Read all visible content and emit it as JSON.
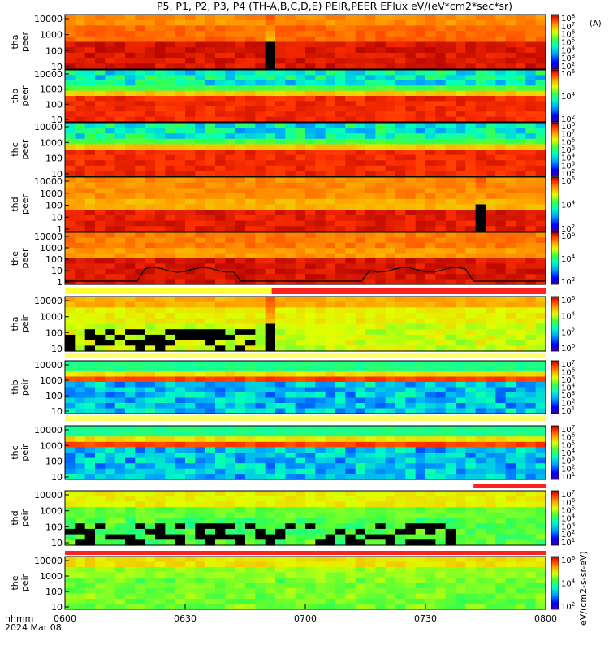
{
  "chart_data": {
    "type": "heatmap",
    "title": "P5, P1, P2, P3, P4 (TH-A,B,C,D,E) PEIR,PEER EFlux eV/(eV*cm2*sec*sr)",
    "colorbar_units": "eV/(cm2-s-sr-eV)",
    "x_tick_labels": [
      "0600",
      "0630",
      "0700",
      "0730",
      "0800"
    ],
    "x_label_line1": "hhmm",
    "x_label_line2": "2024 Mar 08",
    "yscale": "log",
    "panels": [
      {
        "probe": "tha",
        "species": "peer",
        "y_ticks": [
          "10000",
          "1000",
          "100",
          "10"
        ],
        "cb_ticks": [
          "10^8",
          "10^7",
          "10^6",
          "10^5",
          "10^4",
          "10^3",
          "10^2"
        ],
        "cb_unit": "(A)",
        "gap": [
          0.412,
          0.428
        ]
      },
      {
        "probe": "thb",
        "species": "peer",
        "y_ticks": [
          "10000",
          "1000",
          "100",
          "10"
        ],
        "cb_ticks": [
          "10^6",
          "10^4",
          "10^2"
        ]
      },
      {
        "probe": "thc",
        "species": "peer",
        "y_ticks": [
          "10000",
          "1000",
          "100",
          "10"
        ],
        "cb_ticks": [
          "10^8",
          "10^7",
          "10^6",
          "10^5",
          "10^4",
          "10^3",
          "10^2"
        ]
      },
      {
        "probe": "thd",
        "species": "peer",
        "y_ticks": [
          "10000",
          "1000",
          "100",
          "10",
          "1"
        ],
        "cb_ticks": [
          "10^6",
          "10^4",
          "10^2"
        ],
        "gap": [
          0.845,
          0.872
        ]
      },
      {
        "probe": "the",
        "species": "peer",
        "y_ticks": [
          "10000",
          "1000",
          "100",
          "10",
          "1"
        ],
        "cb_ticks": [
          "10^6",
          "10^4",
          "10^2"
        ],
        "potential_line": true
      },
      {
        "probe": "tha",
        "species": "peir",
        "y_ticks": [
          "10000",
          "1000",
          "100",
          "10"
        ],
        "cb_ticks": [
          "10^6",
          "10^4",
          "10^2",
          "10^0"
        ],
        "gap": [
          0.412,
          0.428
        ]
      },
      {
        "probe": "thb",
        "species": "peir",
        "y_ticks": [
          "10000",
          "1000",
          "100",
          "10"
        ],
        "cb_ticks": [
          "10^7",
          "10^6",
          "10^5",
          "10^4",
          "10^3",
          "10^2",
          "10^1"
        ]
      },
      {
        "probe": "thc",
        "species": "peir",
        "y_ticks": [
          "10000",
          "1000",
          "100",
          "10"
        ],
        "cb_ticks": [
          "10^7",
          "10^6",
          "10^5",
          "10^4",
          "10^3",
          "10^2",
          "10^1"
        ]
      },
      {
        "probe": "thd",
        "species": "peir",
        "y_ticks": [
          "10000",
          "1000",
          "100",
          "10"
        ],
        "cb_ticks": [
          "10^7",
          "10^6",
          "10^5",
          "10^4",
          "10^3",
          "10^2",
          "10^1"
        ]
      },
      {
        "probe": "the",
        "species": "peir",
        "y_ticks": [
          "10000",
          "1000",
          "100",
          "10"
        ],
        "cb_ticks": [
          "10^6",
          "10^4",
          "10^2"
        ]
      }
    ],
    "mode_bars": [
      {
        "segments": [
          {
            "color": "#ffff33",
            "from": 0.0,
            "to": 0.43
          },
          {
            "color": "#ff2020",
            "from": 0.43,
            "to": 1.0
          }
        ]
      },
      {
        "segments": [
          {
            "color": "#ffff66",
            "from": 0.0,
            "to": 1.0
          }
        ]
      },
      {
        "segments": [
          {
            "color": "#ffff66",
            "from": 0.0,
            "to": 1.0
          }
        ]
      },
      {
        "segments": [
          {
            "color": "#ff2020",
            "from": 0.85,
            "to": 1.0
          }
        ]
      },
      {
        "segments": [
          {
            "color": "#ff2020",
            "from": 0.0,
            "to": 1.0
          }
        ]
      }
    ]
  }
}
